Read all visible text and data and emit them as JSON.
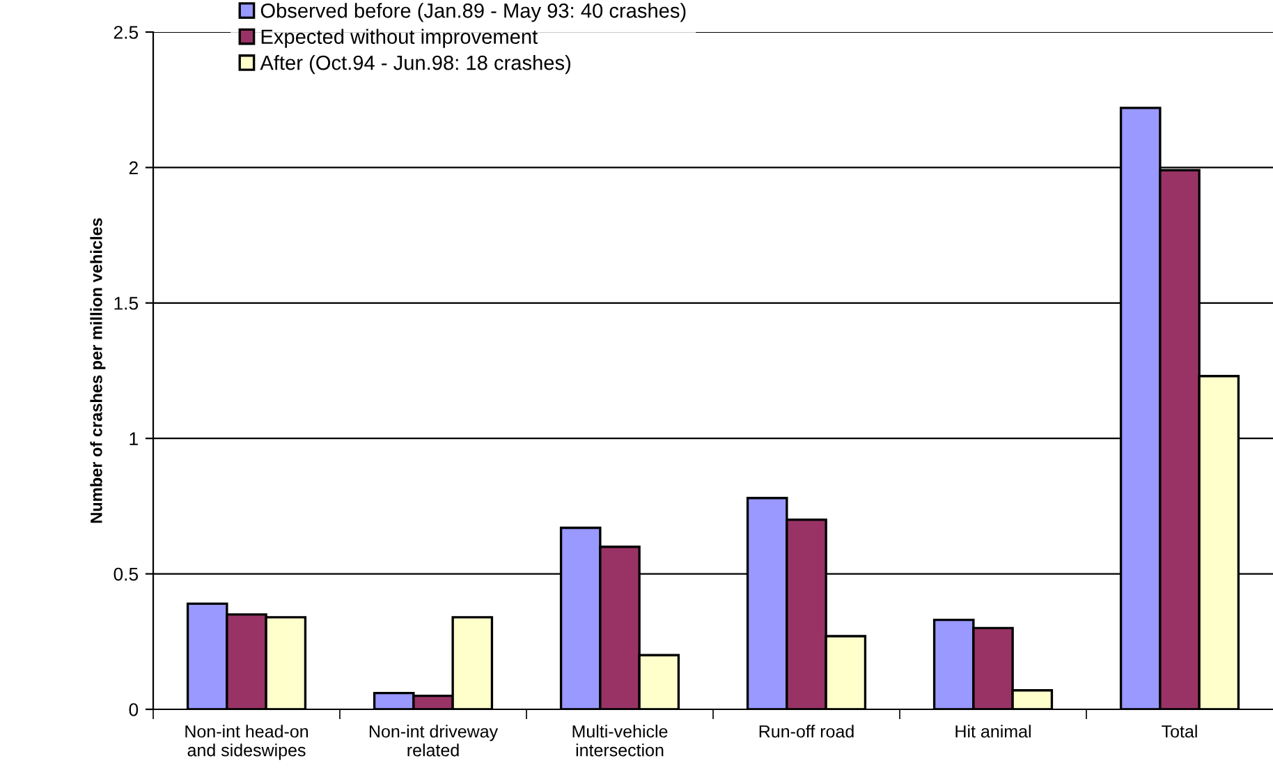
{
  "chart_data": {
    "type": "bar",
    "ylabel": "Number of crashes per million vehicles",
    "categories": [
      "Non-int head-on\nand sideswipes",
      "Non-int driveway\nrelated",
      "Multi-vehicle\nintersection",
      "Run-off road",
      "Hit animal",
      "Total"
    ],
    "series": [
      {
        "name": "Observed before (Jan.89 - May 93: 40 crashes)",
        "color": "#9999ff",
        "values": [
          0.39,
          0.06,
          0.67,
          0.78,
          0.33,
          2.22
        ]
      },
      {
        "name": "Expected without improvement",
        "color": "#993366",
        "values": [
          0.35,
          0.05,
          0.6,
          0.7,
          0.3,
          1.99
        ]
      },
      {
        "name": "After (Oct.94 - Jun.98: 18 crashes)",
        "color": "#ffffcc",
        "values": [
          0.34,
          0.34,
          0.2,
          0.27,
          0.07,
          1.23
        ]
      }
    ],
    "ylim": [
      0,
      2.5
    ],
    "yticks": [
      0,
      0.5,
      1,
      1.5,
      2,
      2.5
    ],
    "grid": "y",
    "legend": "top left"
  }
}
